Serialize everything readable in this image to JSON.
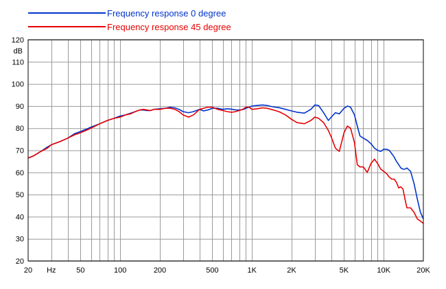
{
  "chart_data": {
    "type": "line",
    "ylabel": "dB",
    "xlabel": "Hz",
    "xscale": "log",
    "xlim": [
      20,
      20000
    ],
    "ylim": [
      20,
      120
    ],
    "grid": true,
    "legend_position": "top-left",
    "y_ticks": [
      20,
      30,
      40,
      50,
      60,
      70,
      80,
      90,
      100,
      110,
      120
    ],
    "x_ticks": [
      {
        "value": 20,
        "label": "20"
      },
      {
        "value": 50,
        "label": "50"
      },
      {
        "value": 100,
        "label": "100"
      },
      {
        "value": 200,
        "label": "200"
      },
      {
        "value": 500,
        "label": "500"
      },
      {
        "value": 1000,
        "label": "1K"
      },
      {
        "value": 2000,
        "label": "2K"
      },
      {
        "value": 5000,
        "label": "5K"
      },
      {
        "value": 10000,
        "label": "10K"
      },
      {
        "value": 20000,
        "label": "20K"
      }
    ],
    "series": [
      {
        "name": "Frequency response 0 degree",
        "color": "#0033cc",
        "x": [
          20,
          22,
          25,
          28,
          30,
          35,
          40,
          45,
          50,
          55,
          60,
          70,
          80,
          90,
          100,
          110,
          120,
          130,
          140,
          150,
          160,
          170,
          180,
          200,
          220,
          240,
          260,
          280,
          300,
          330,
          360,
          400,
          430,
          460,
          500,
          550,
          600,
          650,
          700,
          750,
          800,
          850,
          900,
          950,
          1000,
          1100,
          1200,
          1300,
          1400,
          1500,
          1600,
          1800,
          2000,
          2200,
          2500,
          2800,
          3000,
          3200,
          3500,
          3800,
          4000,
          4300,
          4600,
          5000,
          5300,
          5600,
          6000,
          6300,
          6600,
          7000,
          7500,
          8000,
          8500,
          9000,
          9500,
          10000,
          10500,
          11000,
          11500,
          12000,
          12500,
          13000,
          13500,
          14000,
          14500,
          15000,
          16000,
          17000,
          18000,
          19000,
          20000
        ],
        "y": [
          66.5,
          67.5,
          69.5,
          71.5,
          72.5,
          74,
          75.5,
          77.5,
          78.5,
          79.5,
          80.5,
          82,
          83.5,
          84.5,
          85.5,
          86,
          86.8,
          87.5,
          88.2,
          88.2,
          88,
          88,
          88.5,
          88.8,
          89,
          89.5,
          89.2,
          88.5,
          87.5,
          87,
          87.5,
          88.5,
          87.8,
          88.2,
          89,
          89,
          88.5,
          88.8,
          88.6,
          88.3,
          88.2,
          88.4,
          89,
          89.5,
          90,
          90.3,
          90.5,
          90.3,
          89.8,
          89.5,
          89.3,
          88.5,
          87.8,
          87.2,
          86.8,
          88.5,
          90.5,
          90.3,
          87,
          83.5,
          85,
          87,
          86.5,
          89,
          90,
          89.5,
          86,
          81,
          76.5,
          75.5,
          74.5,
          73,
          71,
          70,
          69.5,
          70.5,
          70.5,
          70,
          68.5,
          67,
          65,
          63.5,
          62,
          61.5,
          61.5,
          62,
          60.5,
          55,
          48,
          42,
          39
        ]
      },
      {
        "name": "Frequency response 45 degree",
        "color": "#e60000",
        "x": [
          20,
          22,
          25,
          28,
          30,
          35,
          40,
          45,
          50,
          55,
          60,
          70,
          80,
          90,
          100,
          110,
          120,
          130,
          140,
          150,
          160,
          170,
          180,
          200,
          220,
          240,
          260,
          280,
          300,
          330,
          360,
          400,
          430,
          460,
          500,
          550,
          600,
          650,
          700,
          750,
          800,
          850,
          900,
          950,
          1000,
          1100,
          1200,
          1300,
          1400,
          1500,
          1600,
          1800,
          2000,
          2200,
          2500,
          2800,
          3000,
          3200,
          3500,
          3800,
          4000,
          4300,
          4600,
          5000,
          5300,
          5600,
          6000,
          6300,
          6600,
          7000,
          7500,
          8000,
          8500,
          9000,
          9500,
          10000,
          10500,
          11000,
          11500,
          12000,
          12500,
          13000,
          13500,
          14000,
          14500,
          15000,
          16000,
          17000,
          18000,
          19000,
          20000
        ],
        "y": [
          66.5,
          67.5,
          69.5,
          71,
          72.5,
          74,
          75.5,
          77,
          78,
          79,
          80,
          82,
          83.5,
          84.5,
          85,
          86,
          86.5,
          87.5,
          88.2,
          88.5,
          88.2,
          88,
          88.5,
          88.5,
          89,
          89,
          88.5,
          87.5,
          86,
          85,
          86,
          88.5,
          89,
          89.5,
          89.5,
          88.5,
          88,
          87.5,
          87.2,
          87.5,
          88,
          88.5,
          89.5,
          89.5,
          88.5,
          88.8,
          89.2,
          89,
          88.5,
          88,
          87.5,
          86,
          84,
          82.5,
          82,
          83.5,
          85,
          84.5,
          82.5,
          79,
          76,
          71,
          69.5,
          78,
          81,
          80,
          73.5,
          63.5,
          62.5,
          62.5,
          60,
          64,
          66,
          64,
          61.5,
          60.5,
          59.5,
          58,
          57,
          57,
          55.5,
          53,
          53.5,
          52.5,
          48,
          44,
          44,
          42,
          39,
          38,
          37
        ]
      }
    ]
  }
}
